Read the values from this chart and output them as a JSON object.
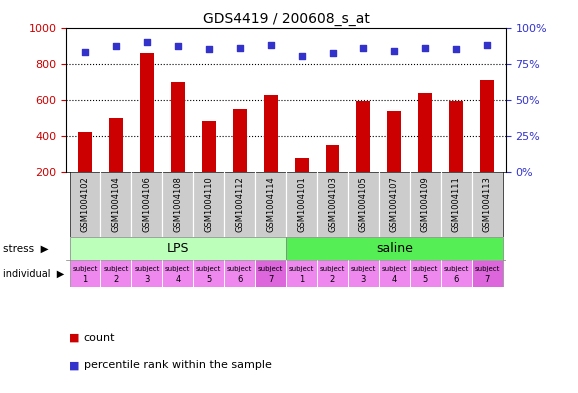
{
  "title": "GDS4419 / 200608_s_at",
  "samples": [
    "GSM1004102",
    "GSM1004104",
    "GSM1004106",
    "GSM1004108",
    "GSM1004110",
    "GSM1004112",
    "GSM1004114",
    "GSM1004101",
    "GSM1004103",
    "GSM1004105",
    "GSM1004107",
    "GSM1004109",
    "GSM1004111",
    "GSM1004113"
  ],
  "counts": [
    420,
    500,
    860,
    695,
    480,
    545,
    625,
    275,
    350,
    590,
    535,
    635,
    590,
    710
  ],
  "percentiles": [
    83,
    87,
    90,
    87,
    85,
    86,
    88,
    80,
    82,
    86,
    84,
    86,
    85,
    88
  ],
  "bar_color": "#cc0000",
  "dot_color": "#3333cc",
  "ylim_left": [
    200,
    1000
  ],
  "ylim_right": [
    0,
    100
  ],
  "yticks_left": [
    200,
    400,
    600,
    800,
    1000
  ],
  "yticks_right": [
    0,
    25,
    50,
    75,
    100
  ],
  "dotted_lines": [
    400,
    600,
    800
  ],
  "stress_lps": "LPS",
  "stress_saline": "saline",
  "lps_color": "#bbffbb",
  "saline_color": "#55ee55",
  "individual_color_light": "#ee88ee",
  "individual_color_dark": "#dd66dd",
  "tick_bg_color": "#cccccc",
  "n_lps": 7,
  "n_saline": 7,
  "ylabel_left_color": "#cc0000",
  "ylabel_right_color": "#3333cc",
  "subject_labels_top": [
    "subject",
    "subject",
    "subject",
    "subject",
    "subject",
    "subject",
    "subject",
    "subject",
    "subject",
    "subject",
    "subject",
    "subject",
    "subject",
    "subject"
  ],
  "subject_labels_bot": [
    "1",
    "2",
    "3",
    "4",
    "5",
    "6",
    "7",
    "1",
    "2",
    "3",
    "4",
    "5",
    "6",
    "7"
  ],
  "dark_subjects": [
    6,
    13
  ]
}
